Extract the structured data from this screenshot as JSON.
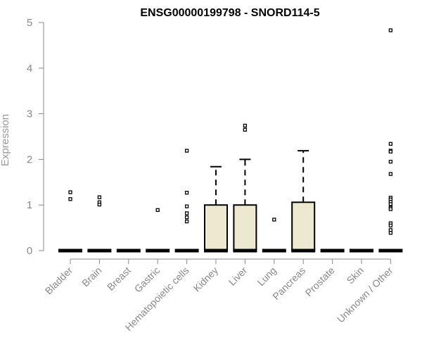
{
  "chart_data": {
    "type": "box",
    "title": "ENSG00000199798 - SNORD114-5",
    "xlabel": "",
    "ylabel": "Expression",
    "ylim": [
      0,
      5
    ],
    "yticks": [
      0,
      1,
      2,
      3,
      4,
      5
    ],
    "grid": false,
    "box_fill": "#ede8d0",
    "categories": [
      "Bladder",
      "Brain",
      "Breast",
      "Gastric",
      "Hematopoietic cells",
      "Kidney",
      "Liver",
      "Lung",
      "Pancreas",
      "Prostate",
      "Skin",
      "Unknown / Other"
    ],
    "boxes": [
      {
        "category": "Bladder",
        "q1": 0,
        "median": 0,
        "q3": 0,
        "whisker_high": 0,
        "outliers": [
          1.28,
          1.13
        ]
      },
      {
        "category": "Brain",
        "q1": 0,
        "median": 0,
        "q3": 0,
        "whisker_high": 0,
        "outliers": [
          1.17,
          1.06,
          1.01
        ]
      },
      {
        "category": "Breast",
        "q1": 0,
        "median": 0,
        "q3": 0,
        "whisker_high": 0,
        "outliers": []
      },
      {
        "category": "Gastric",
        "q1": 0,
        "median": 0,
        "q3": 0,
        "whisker_high": 0,
        "outliers": [
          0.89
        ]
      },
      {
        "category": "Hematopoietic cells",
        "q1": 0,
        "median": 0,
        "q3": 0,
        "whisker_high": 0,
        "outliers": [
          2.19,
          1.27,
          0.97,
          0.82,
          0.73,
          0.64
        ]
      },
      {
        "category": "Kidney",
        "q1": 0,
        "median": 0,
        "q3": 1.0,
        "whisker_high": 1.84,
        "outliers": []
      },
      {
        "category": "Liver",
        "q1": 0,
        "median": 0,
        "q3": 1.0,
        "whisker_high": 2.0,
        "outliers": [
          2.74,
          2.65
        ]
      },
      {
        "category": "Lung",
        "q1": 0,
        "median": 0,
        "q3": 0,
        "whisker_high": 0,
        "outliers": [
          0.68
        ]
      },
      {
        "category": "Pancreas",
        "q1": 0,
        "median": 0,
        "q3": 1.06,
        "whisker_high": 2.19,
        "outliers": []
      },
      {
        "category": "Prostate",
        "q1": 0,
        "median": 0,
        "q3": 0,
        "whisker_high": 0,
        "outliers": []
      },
      {
        "category": "Skin",
        "q1": 0,
        "median": 0,
        "q3": 0,
        "whisker_high": 0,
        "outliers": []
      },
      {
        "category": "Unknown / Other",
        "q1": 0,
        "median": 0,
        "q3": 0,
        "whisker_high": 0,
        "outliers": [
          4.83,
          2.34,
          2.19,
          2.17,
          1.95,
          1.68,
          1.16,
          1.12,
          1.07,
          1.02,
          0.94,
          0.91,
          0.6,
          0.55,
          0.45,
          0.39
        ]
      }
    ]
  }
}
